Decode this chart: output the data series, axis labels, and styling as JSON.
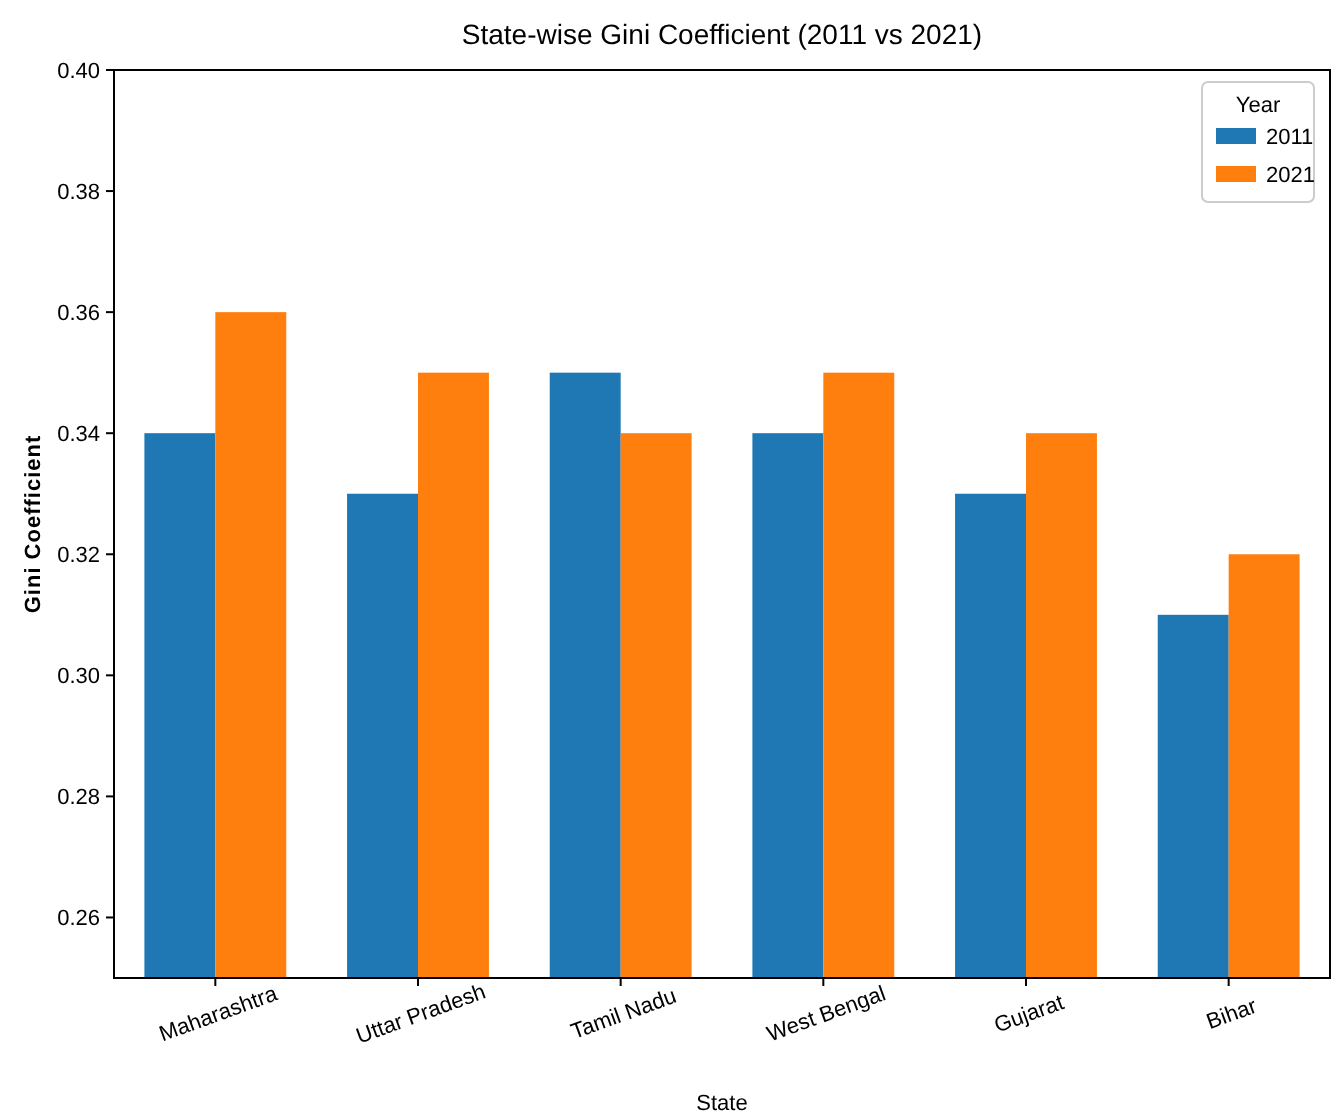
{
  "chart_data": {
    "type": "bar",
    "title": "State-wise Gini Coefficient (2011 vs 2021)",
    "xlabel": "State",
    "ylabel": "Gini Coefficient",
    "legend_title": "Year",
    "categories": [
      "Maharashtra",
      "Uttar Pradesh",
      "Tamil Nadu",
      "West Bengal",
      "Gujarat",
      "Bihar"
    ],
    "series": [
      {
        "name": "2011",
        "color": "#1f77b4",
        "values": [
          0.34,
          0.33,
          0.35,
          0.34,
          0.33,
          0.31
        ]
      },
      {
        "name": "2021",
        "color": "#ff7f0e",
        "values": [
          0.36,
          0.35,
          0.34,
          0.35,
          0.34,
          0.32
        ]
      }
    ],
    "ylim": [
      0.25,
      0.4
    ],
    "yticks": [
      {
        "value": 0.26,
        "label": "0.26"
      },
      {
        "value": 0.28,
        "label": "0.28"
      },
      {
        "value": 0.3,
        "label": "0.30"
      },
      {
        "value": 0.32,
        "label": "0.32"
      },
      {
        "value": 0.34,
        "label": "0.34"
      },
      {
        "value": 0.36,
        "label": "0.36"
      },
      {
        "value": 0.38,
        "label": "0.38"
      },
      {
        "value": 0.4,
        "label": "0.40"
      }
    ],
    "legend": "top right",
    "grid": false
  }
}
